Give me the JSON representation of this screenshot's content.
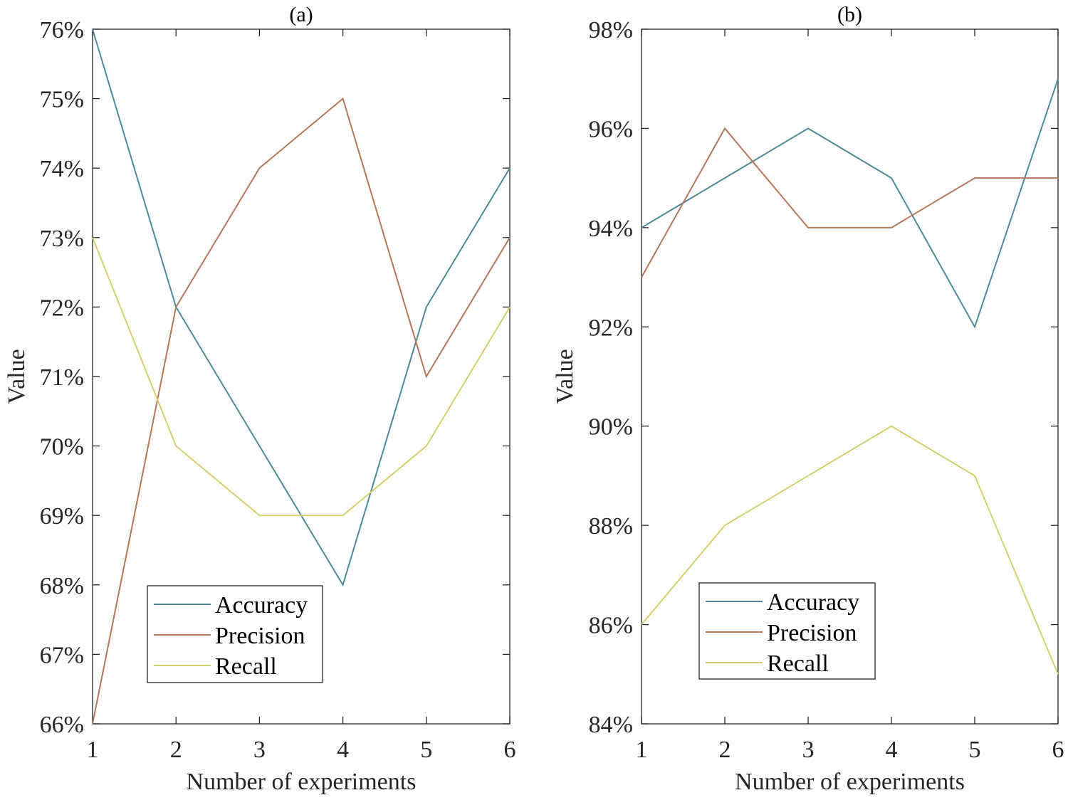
{
  "chart_data": [
    {
      "type": "line",
      "title": "(a)",
      "xlabel": "Number of experiments",
      "ylabel": "Value",
      "x": [
        1,
        2,
        3,
        4,
        5,
        6
      ],
      "xlim": [
        1,
        6
      ],
      "ylim": [
        66,
        76
      ],
      "y_ticks": [
        66,
        67,
        68,
        69,
        70,
        71,
        72,
        73,
        74,
        75,
        76
      ],
      "y_tick_format": "%",
      "grid": false,
      "legend_position": "bottom-left",
      "series": [
        {
          "name": "Accuracy",
          "color": "#4f8a98",
          "values": [
            76,
            72,
            70,
            68,
            72,
            74
          ]
        },
        {
          "name": "Precision",
          "color": "#b5775a",
          "values": [
            66,
            72,
            74,
            75,
            71,
            73
          ]
        },
        {
          "name": "Recall",
          "color": "#d6cf6e",
          "values": [
            73,
            70,
            69,
            69,
            70,
            72
          ]
        }
      ]
    },
    {
      "type": "line",
      "title": "(b)",
      "xlabel": "Number of experiments",
      "ylabel": "Value",
      "x": [
        1,
        2,
        3,
        4,
        5,
        6
      ],
      "xlim": [
        1,
        6
      ],
      "ylim": [
        84,
        98
      ],
      "y_ticks": [
        84,
        86,
        88,
        90,
        92,
        94,
        96,
        98
      ],
      "y_tick_format": "%",
      "grid": false,
      "legend_position": "bottom-center",
      "series": [
        {
          "name": "Accuracy",
          "color": "#4f8a98",
          "values": [
            94,
            95,
            96,
            95,
            92,
            97
          ]
        },
        {
          "name": "Precision",
          "color": "#b5775a",
          "values": [
            93,
            96,
            94,
            94,
            95,
            95
          ]
        },
        {
          "name": "Recall",
          "color": "#d6cf6e",
          "values": [
            86,
            88,
            89,
            90,
            89,
            85
          ]
        }
      ]
    }
  ]
}
